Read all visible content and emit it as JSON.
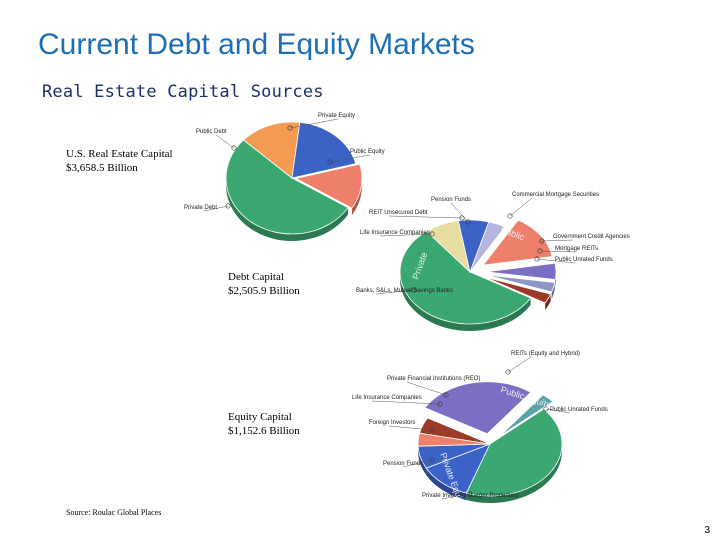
{
  "slide": {
    "title": "Current Debt and Equity Markets",
    "subtitle": "Real Estate Capital Sources",
    "source": "Source: Roulac Global Places",
    "page_number": "3"
  },
  "colors": {
    "title": "#1f6eb4",
    "subtitle": "#1b2f6e",
    "green": "#3aa870",
    "blue": "#3b63c7",
    "orange": "#f39a53",
    "salmon": "#ee7f6b",
    "tan": "#e8dda0",
    "purple": "#7a6fc2",
    "lavender": "#b6b4e0",
    "slate": "#8d97c4",
    "darkred": "#9c3a28",
    "teal": "#5aa3a9"
  },
  "chart_data": [
    {
      "type": "pie",
      "title": "U.S. Real Estate Capital",
      "subtitle": "$3,658.5 Billion",
      "slices": [
        {
          "label": "Private Debt",
          "value": 0.53,
          "color": "green"
        },
        {
          "label": "Public Debt",
          "value": 0.15,
          "color": "orange"
        },
        {
          "label": "Private Equity",
          "value": 0.19,
          "color": "blue"
        },
        {
          "label": "Public Equity",
          "value": 0.13,
          "color": "salmon"
        }
      ]
    },
    {
      "type": "pie",
      "title": "Debt Capital",
      "subtitle": "$2,505.9 Billion",
      "slices": [
        {
          "label": "Banks, S&Ls, Mutual Savings Banks",
          "value": 0.56,
          "color": "green"
        },
        {
          "label": "Life Insurance Companies",
          "value": 0.08,
          "color": "tan"
        },
        {
          "label": "Pension Funds",
          "value": 0.07,
          "color": "blue"
        },
        {
          "label": "REIT Unsecured Debt",
          "value": 0.04,
          "color": "lavender"
        },
        {
          "label": "Commercial Mortgage Securities",
          "value": 0.14,
          "color": "salmon"
        },
        {
          "label": "Government Credit Agencies",
          "value": 0.05,
          "color": "purple"
        },
        {
          "label": "Mortgage REITs",
          "value": 0.03,
          "color": "slate"
        },
        {
          "label": "Public Unrated Funds",
          "value": 0.03,
          "color": "darkred"
        }
      ],
      "group_labels": [
        "Private",
        "Public"
      ]
    },
    {
      "type": "pie",
      "title": "Equity Capital",
      "subtitle": "$1,152.6 Billion",
      "slices": [
        {
          "label": "REITs (Equity and Hybrid)",
          "value": 0.27,
          "color": "purple"
        },
        {
          "label": "Public Unrated Funds",
          "value": 0.03,
          "color": "teal"
        },
        {
          "label": "Private Investors (Larger Properties)",
          "value": 0.42,
          "color": "green"
        },
        {
          "label": "Pension Funds",
          "value": 0.12,
          "color": "blue"
        },
        {
          "label": "Foreign Investors",
          "value": 0.07,
          "color": "blue"
        },
        {
          "label": "Life Insurance Companies",
          "value": 0.04,
          "color": "salmon"
        },
        {
          "label": "Private Financial Institutions (REO)",
          "value": 0.05,
          "color": "darkred"
        }
      ],
      "group_labels": [
        "Public Equity",
        "Private Equity"
      ]
    }
  ]
}
